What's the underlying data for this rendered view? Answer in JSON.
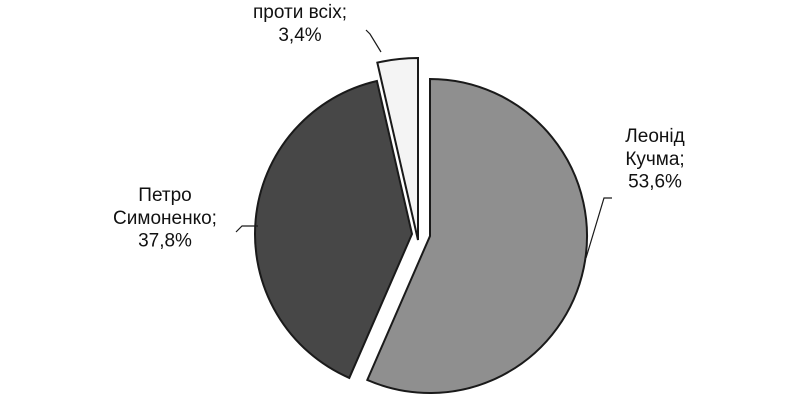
{
  "chart_data": {
    "type": "pie",
    "title": "",
    "unit": "%",
    "slices": [
      {
        "name": "Леонід Кучма",
        "value": 53.6,
        "label_lines": [
          "Леонід",
          "Кучма;",
          "53,6%"
        ],
        "color": "#8f8f8f"
      },
      {
        "name": "Петро Симоненко",
        "value": 37.8,
        "label_lines": [
          "Петро",
          "Симоненко;",
          "37,8%"
        ],
        "color": "#474747"
      },
      {
        "name": "проти всіх",
        "value": 3.4,
        "label_lines": [
          "проти всіх;",
          "3,4%"
        ],
        "color": "#f4f4f4"
      }
    ],
    "exploded": true,
    "legend": "none"
  }
}
